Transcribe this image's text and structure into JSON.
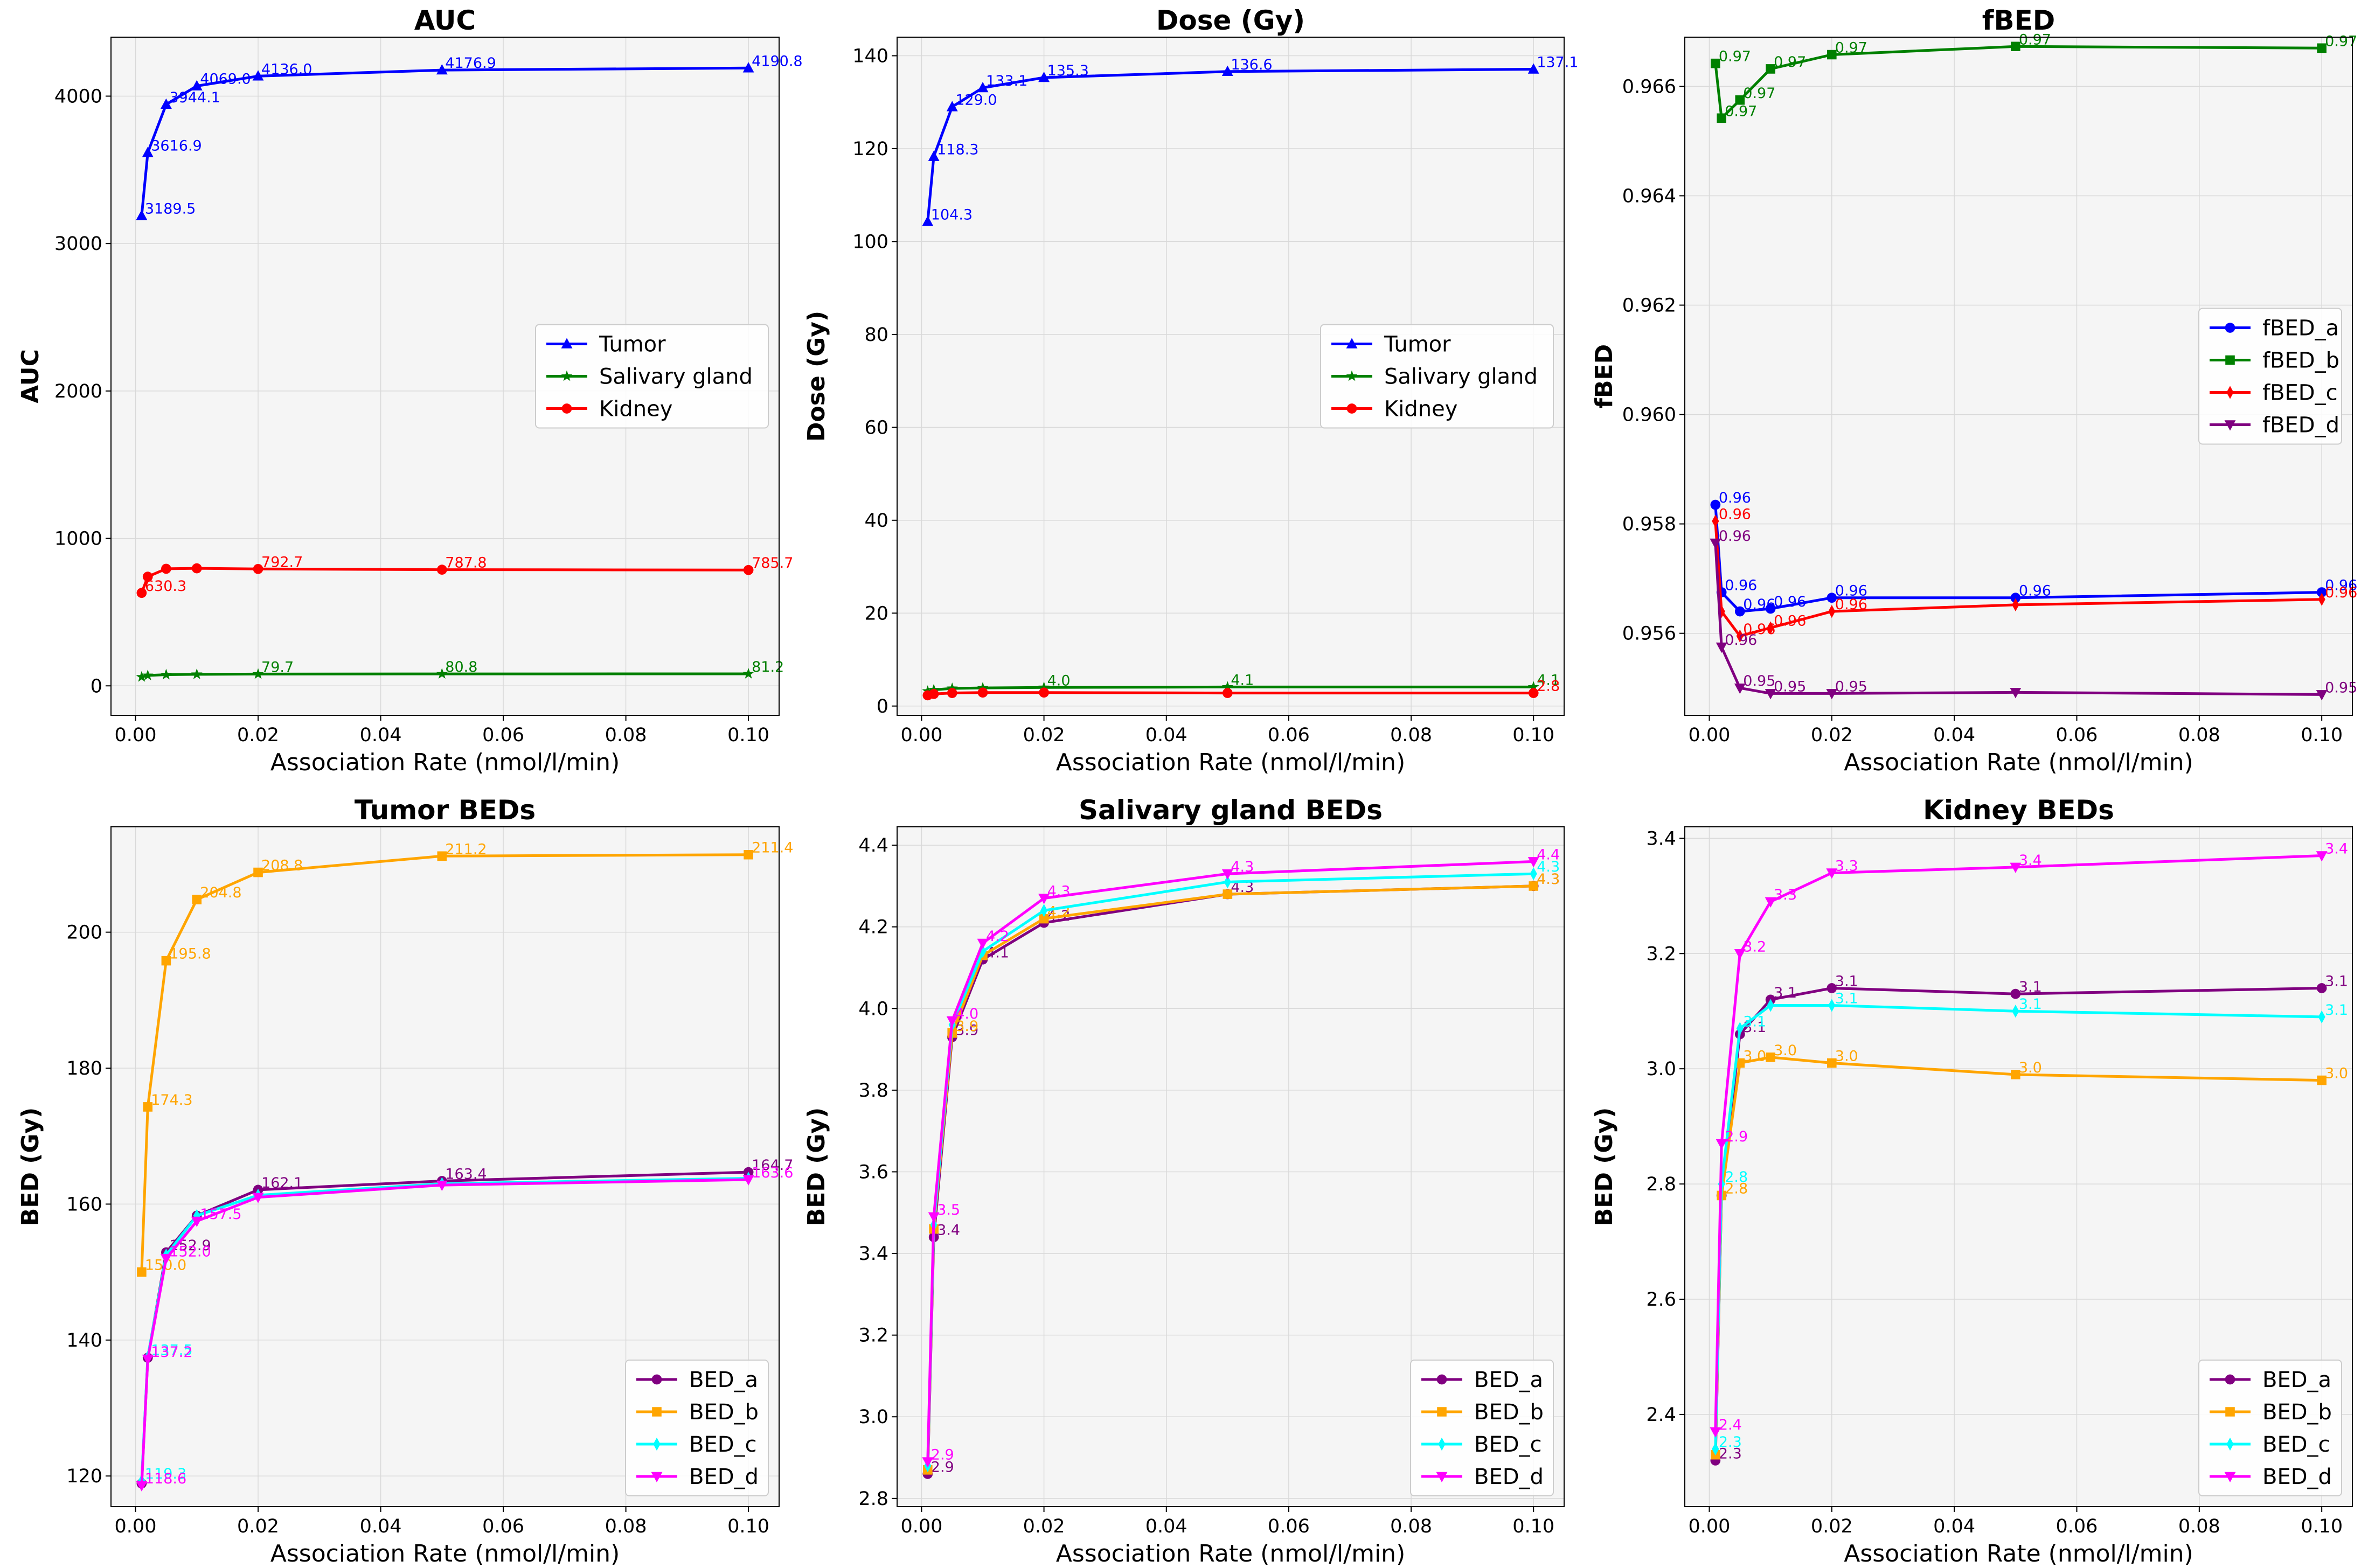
{
  "chart_data": [
    {
      "id": "auc",
      "type": "line",
      "title": "AUC",
      "xlabel": "Association Rate (nmol/l/min)",
      "ylabel": "AUC",
      "xlim": [
        -0.004,
        0.105
      ],
      "ylim": [
        -200,
        4400
      ],
      "xticks": [
        0.0,
        0.02,
        0.04,
        0.06,
        0.08,
        0.1
      ],
      "xtick_labels": [
        "0.00",
        "0.02",
        "0.04",
        "0.06",
        "0.08",
        "0.10"
      ],
      "yticks": [
        0,
        1000,
        2000,
        3000,
        4000
      ],
      "ytick_labels": [
        "0",
        "1000",
        "2000",
        "3000",
        "4000"
      ],
      "x": [
        0.001,
        0.002,
        0.005,
        0.01,
        0.02,
        0.05,
        0.1
      ],
      "grid": true,
      "legend_position": "center-right",
      "series": [
        {
          "name": "Tumor",
          "color": "#0000ff",
          "marker": "triangle-up",
          "values": [
            3189.5,
            3616.9,
            3944.1,
            4069.0,
            4136.0,
            4176.9,
            4190.8
          ],
          "labels": [
            "3189.5",
            "3616.9",
            "3944.1",
            "4069.0",
            "4136.0",
            "4176.9",
            "4190.8"
          ]
        },
        {
          "name": "Salivary gland",
          "color": "#008000",
          "marker": "star",
          "values": [
            60.1,
            70.2,
            75.7,
            78.0,
            79.7,
            80.8,
            81.2
          ],
          "labels": [
            "",
            "",
            "",
            "",
            "79.7",
            "80.8",
            "81.2"
          ]
        },
        {
          "name": "Kidney",
          "color": "#ff0000",
          "marker": "circle",
          "values": [
            630.3,
            740.5,
            794.0,
            797.0,
            792.7,
            787.8,
            785.7
          ],
          "labels": [
            "630.3",
            "",
            "",
            "",
            "792.7",
            "787.8",
            "785.7"
          ]
        }
      ]
    },
    {
      "id": "dose",
      "type": "line",
      "title": "Dose (Gy)",
      "xlabel": "Association Rate (nmol/l/min)",
      "ylabel": "Dose (Gy)",
      "xlim": [
        -0.004,
        0.105
      ],
      "ylim": [
        -2,
        144
      ],
      "xticks": [
        0.0,
        0.02,
        0.04,
        0.06,
        0.08,
        0.1
      ],
      "xtick_labels": [
        "0.00",
        "0.02",
        "0.04",
        "0.06",
        "0.08",
        "0.10"
      ],
      "yticks": [
        0,
        20,
        40,
        60,
        80,
        100,
        120,
        140
      ],
      "ytick_labels": [
        "0",
        "20",
        "40",
        "60",
        "80",
        "100",
        "120",
        "140"
      ],
      "x": [
        0.001,
        0.002,
        0.005,
        0.01,
        0.02,
        0.05,
        0.1
      ],
      "grid": true,
      "legend_position": "center-right",
      "series": [
        {
          "name": "Tumor",
          "color": "#0000ff",
          "marker": "triangle-up",
          "values": [
            104.3,
            118.3,
            129.0,
            133.1,
            135.3,
            136.6,
            137.1
          ],
          "labels": [
            "104.3",
            "118.3",
            "129.0",
            "133.1",
            "135.3",
            "136.6",
            "137.1"
          ]
        },
        {
          "name": "Salivary gland",
          "color": "#008000",
          "marker": "star",
          "values": [
            3.2,
            3.5,
            3.8,
            3.9,
            4.0,
            4.1,
            4.1
          ],
          "labels": [
            "",
            "",
            "",
            "",
            "4.0",
            "4.1",
            "4.1"
          ]
        },
        {
          "name": "Kidney",
          "color": "#ff0000",
          "marker": "circle",
          "values": [
            2.3,
            2.6,
            2.8,
            2.9,
            2.9,
            2.8,
            2.8
          ],
          "labels": [
            "",
            "",
            "",
            "",
            "",
            "",
            "2.8"
          ]
        }
      ]
    },
    {
      "id": "fbed",
      "type": "line",
      "title": "fBED",
      "xlabel": "Association Rate (nmol/l/min)",
      "ylabel": "fBED",
      "xlim": [
        -0.004,
        0.105
      ],
      "ylim": [
        0.9545,
        0.9669
      ],
      "xticks": [
        0.0,
        0.02,
        0.04,
        0.06,
        0.08,
        0.1
      ],
      "xtick_labels": [
        "0.00",
        "0.02",
        "0.04",
        "0.06",
        "0.08",
        "0.10"
      ],
      "yticks": [
        0.956,
        0.958,
        0.96,
        0.962,
        0.964,
        0.966
      ],
      "ytick_labels": [
        "0.956",
        "0.958",
        "0.960",
        "0.962",
        "0.964",
        "0.966"
      ],
      "x": [
        0.001,
        0.002,
        0.005,
        0.01,
        0.02,
        0.05,
        0.1
      ],
      "grid": true,
      "legend_position": "center-right",
      "series": [
        {
          "name": "fBED_a",
          "color": "#0000ff",
          "marker": "circle",
          "values": [
            0.95835,
            0.95675,
            0.9564,
            0.95645,
            0.95665,
            0.95665,
            0.95675
          ],
          "labels": [
            "0.96",
            "0.96",
            "0.96",
            "0.96",
            "0.96",
            "0.96",
            "0.96"
          ]
        },
        {
          "name": "fBED_b",
          "color": "#008000",
          "marker": "square",
          "values": [
            0.96642,
            0.96542,
            0.96575,
            0.96632,
            0.96658,
            0.96673,
            0.9667
          ],
          "labels": [
            "0.97",
            "0.97",
            "0.97",
            "0.97",
            "0.97",
            "0.97",
            "0.97"
          ]
        },
        {
          "name": "fBED_c",
          "color": "#ff0000",
          "marker": "thin-diamond",
          "values": [
            0.95805,
            0.9564,
            0.95595,
            0.9561,
            0.9564,
            0.95652,
            0.95662
          ],
          "labels": [
            "0.96",
            "",
            "0.96",
            "0.96",
            "0.96",
            "",
            "0.96"
          ]
        },
        {
          "name": "fBED_d",
          "color": "#800080",
          "marker": "triangle-down",
          "values": [
            0.95765,
            0.95575,
            0.955,
            0.9549,
            0.9549,
            0.95492,
            0.95488
          ],
          "labels": [
            "0.96",
            "0.96",
            "0.95",
            "0.95",
            "0.95",
            "",
            "0.95"
          ]
        }
      ]
    },
    {
      "id": "tumor_beds",
      "type": "line",
      "title": "Tumor BEDs",
      "xlabel": "Association Rate (nmol/l/min)",
      "ylabel": "BED (Gy)",
      "xlim": [
        -0.004,
        0.105
      ],
      "ylim": [
        115.5,
        215.5
      ],
      "xticks": [
        0.0,
        0.02,
        0.04,
        0.06,
        0.08,
        0.1
      ],
      "xtick_labels": [
        "0.00",
        "0.02",
        "0.04",
        "0.06",
        "0.08",
        "0.10"
      ],
      "yticks": [
        120,
        140,
        160,
        180,
        200
      ],
      "ytick_labels": [
        "120",
        "140",
        "160",
        "180",
        "200"
      ],
      "x": [
        0.001,
        0.002,
        0.005,
        0.01,
        0.02,
        0.05,
        0.1
      ],
      "grid": true,
      "legend_position": "lower-right",
      "series": [
        {
          "name": "BED_a",
          "color": "#800080",
          "marker": "circle",
          "values": [
            118.9,
            137.4,
            152.9,
            158.3,
            162.1,
            163.4,
            164.7
          ],
          "labels": [
            "",
            "",
            "152.9",
            "",
            "162.1",
            "163.4",
            "164.7"
          ]
        },
        {
          "name": "BED_b",
          "color": "#ffa500",
          "marker": "square",
          "values": [
            150.0,
            174.3,
            195.8,
            204.8,
            208.8,
            211.2,
            211.4
          ],
          "labels": [
            "150.0",
            "174.3",
            "195.8",
            "204.8",
            "208.8",
            "211.2",
            "211.4"
          ]
        },
        {
          "name": "BED_c",
          "color": "#00ffff",
          "marker": "thin-diamond",
          "values": [
            119.3,
            137.5,
            152.5,
            158.3,
            161.3,
            163.0,
            163.8
          ],
          "labels": [
            "119.3",
            "137.5",
            "",
            "",
            "",
            "",
            ""
          ]
        },
        {
          "name": "BED_d",
          "color": "#ff00ff",
          "marker": "triangle-down",
          "values": [
            118.6,
            137.2,
            152.0,
            157.5,
            161.0,
            162.8,
            163.6
          ],
          "labels": [
            "118.6",
            "137.2",
            "152.0",
            "157.5",
            "",
            "",
            "163.6"
          ]
        }
      ]
    },
    {
      "id": "salivary_beds",
      "type": "line",
      "title": "Salivary gland BEDs",
      "xlabel": "Association Rate (nmol/l/min)",
      "ylabel": "BED (Gy)",
      "xlim": [
        -0.004,
        0.105
      ],
      "ylim": [
        2.78,
        4.445
      ],
      "xticks": [
        0.0,
        0.02,
        0.04,
        0.06,
        0.08,
        0.1
      ],
      "xtick_labels": [
        "0.00",
        "0.02",
        "0.04",
        "0.06",
        "0.08",
        "0.10"
      ],
      "yticks": [
        2.8,
        3.0,
        3.2,
        3.4,
        3.6,
        3.8,
        4.0,
        4.2,
        4.4
      ],
      "ytick_labels": [
        "2.8",
        "3.0",
        "3.2",
        "3.4",
        "3.6",
        "3.8",
        "4.0",
        "4.2",
        "4.4"
      ],
      "x": [
        0.001,
        0.002,
        0.005,
        0.01,
        0.02,
        0.05,
        0.1
      ],
      "grid": true,
      "legend_position": "lower-right",
      "series": [
        {
          "name": "BED_a",
          "color": "#800080",
          "marker": "circle",
          "values": [
            2.86,
            3.44,
            3.93,
            4.12,
            4.21,
            4.28,
            4.3
          ],
          "labels": [
            "2.9",
            "3.4",
            "3.9",
            "4.1",
            "4.2",
            "4.3",
            "4.3"
          ]
        },
        {
          "name": "BED_b",
          "color": "#ffa500",
          "marker": "square",
          "values": [
            2.87,
            3.46,
            3.94,
            4.13,
            4.22,
            4.28,
            4.3
          ],
          "labels": [
            "",
            "",
            "3.9",
            "",
            "4.2",
            "",
            "4.3"
          ]
        },
        {
          "name": "BED_c",
          "color": "#00ffff",
          "marker": "thin-diamond",
          "values": [
            2.88,
            3.47,
            3.96,
            4.14,
            4.24,
            4.31,
            4.33
          ],
          "labels": [
            "",
            "",
            "",
            "",
            "",
            "",
            "4.3"
          ]
        },
        {
          "name": "BED_d",
          "color": "#ff00ff",
          "marker": "triangle-down",
          "values": [
            2.89,
            3.49,
            3.97,
            4.16,
            4.27,
            4.33,
            4.36
          ],
          "labels": [
            "2.9",
            "3.5",
            "4.0",
            "4.2",
            "4.3",
            "4.3",
            "4.4"
          ]
        }
      ]
    },
    {
      "id": "kidney_beds",
      "type": "line",
      "title": "Kidney BEDs",
      "xlabel": "Association Rate (nmol/l/min)",
      "ylabel": "BED (Gy)",
      "xlim": [
        -0.004,
        0.105
      ],
      "ylim": [
        2.24,
        3.42
      ],
      "xticks": [
        0.0,
        0.02,
        0.04,
        0.06,
        0.08,
        0.1
      ],
      "xtick_labels": [
        "0.00",
        "0.02",
        "0.04",
        "0.06",
        "0.08",
        "0.10"
      ],
      "yticks": [
        2.4,
        2.6,
        2.8,
        3.0,
        3.2,
        3.4
      ],
      "ytick_labels": [
        "2.4",
        "2.6",
        "2.8",
        "3.0",
        "3.2",
        "3.4"
      ],
      "x": [
        0.001,
        0.002,
        0.005,
        0.01,
        0.02,
        0.05,
        0.1
      ],
      "grid": true,
      "legend_position": "lower-right",
      "series": [
        {
          "name": "BED_a",
          "color": "#800080",
          "marker": "circle",
          "values": [
            2.32,
            2.78,
            3.06,
            3.12,
            3.14,
            3.13,
            3.14
          ],
          "labels": [
            "2.3",
            "",
            "3.1",
            "3.1",
            "3.1",
            "3.1",
            "3.1"
          ]
        },
        {
          "name": "BED_b",
          "color": "#ffa500",
          "marker": "square",
          "values": [
            2.33,
            2.78,
            3.01,
            3.02,
            3.01,
            2.99,
            2.98
          ],
          "labels": [
            "",
            "2.8",
            "3.0",
            "3.0",
            "3.0",
            "3.0",
            "3.0"
          ]
        },
        {
          "name": "BED_c",
          "color": "#00ffff",
          "marker": "thin-diamond",
          "values": [
            2.34,
            2.8,
            3.07,
            3.11,
            3.11,
            3.1,
            3.09
          ],
          "labels": [
            "2.3",
            "2.8",
            "3.1",
            "",
            "3.1",
            "3.1",
            "3.1"
          ]
        },
        {
          "name": "BED_d",
          "color": "#ff00ff",
          "marker": "triangle-down",
          "values": [
            2.37,
            2.87,
            3.2,
            3.29,
            3.34,
            3.35,
            3.37
          ],
          "labels": [
            "2.4",
            "2.9",
            "3.2",
            "3.3",
            "3.3",
            "3.4",
            "3.4"
          ]
        }
      ]
    }
  ]
}
